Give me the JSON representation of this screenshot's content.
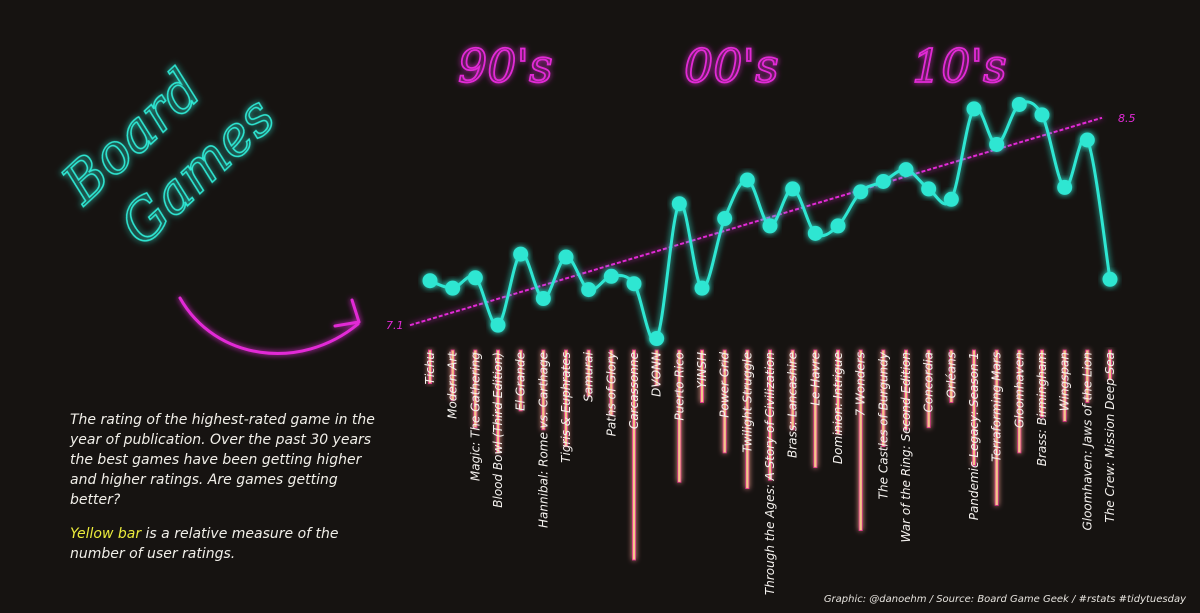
{
  "title_lines": [
    "Board",
    "Games"
  ],
  "decades": [
    "90's",
    "00's",
    "10's"
  ],
  "description": {
    "paragraph1": "The rating of the highest-rated game in the year of publication. Over the past 30 years the best games have been getting higher and higher ratings. Are games getting better?",
    "paragraph2_highlight": "Yellow bar",
    "paragraph2_rest": " is a relative measure of the number of user ratings."
  },
  "credit": "Graphic: @danoehm / Source: Board Game Geek / #rstats #tidytuesday",
  "colors": {
    "background": "#161311",
    "line": "#2ee6d2",
    "trend": "#e22ad6",
    "bars": "#f2c78a",
    "bar_glow": "#e02a8c",
    "highlight": "#ecec3c"
  },
  "chart_data": {
    "type": "line",
    "title": "",
    "xlabel": "",
    "ylabel": "",
    "trend_start_label": "7.1",
    "trend_end_label": "8.5",
    "trend_range": [
      7.1,
      8.5
    ],
    "games": [
      "Tichu",
      "Modern Art",
      "Magic: The Gathering",
      "Blood Bowl (Third Edition)",
      "El Grande",
      "Hannibal: Rome vs. Carthage",
      "Tigris & Euphrates",
      "Samurai",
      "Paths of Glory",
      "Carcassonne",
      "DVONN",
      "Puerto Rico",
      "YINSH",
      "Power Grid",
      "Twilight Struggle",
      "Through the Ages: A Story of Civilization",
      "Brass: Lancashire",
      "Le Havre",
      "Dominion: Intrigue",
      "7 Wonders",
      "The Castles of Burgundy",
      "War of the Ring: Second Edition",
      "Concordia",
      "Orléans",
      "Pandemic Legacy: Season 1",
      "Terraforming Mars",
      "Gloomhaven",
      "Brass: Birmingham",
      "Wingspan",
      "Gloomhaven: Jaws of the Lion",
      "The Crew: Mission Deep Sea"
    ],
    "ratings": [
      7.4,
      7.35,
      7.42,
      7.1,
      7.58,
      7.28,
      7.56,
      7.34,
      7.43,
      7.38,
      7.01,
      7.92,
      7.35,
      7.82,
      8.08,
      7.77,
      8.02,
      7.72,
      7.77,
      8.0,
      8.07,
      8.15,
      8.02,
      7.95,
      8.56,
      8.32,
      8.59,
      8.52,
      8.03,
      8.35,
      7.41
    ],
    "user_ratings_relative": [
      0.16,
      0.24,
      0.37,
      0.49,
      0.29,
      0.38,
      0.46,
      0.22,
      0.31,
      1.0,
      0.17,
      0.63,
      0.25,
      0.49,
      0.66,
      0.62,
      0.38,
      0.56,
      0.4,
      0.86,
      0.46,
      0.38,
      0.37,
      0.25,
      0.55,
      0.74,
      0.49,
      0.32,
      0.34,
      0.25,
      0.14
    ]
  }
}
